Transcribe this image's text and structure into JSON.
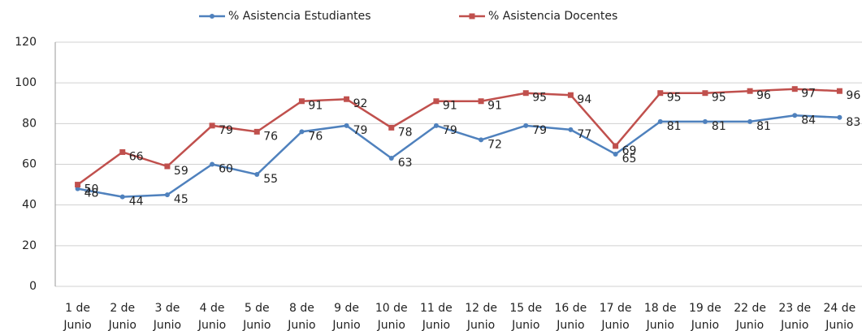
{
  "chart_data": {
    "type": "line",
    "categories": [
      "1 de Junio",
      "2 de Junio",
      "3 de Junio",
      "4 de Junio",
      "5 de Junio",
      "8 de Junio",
      "9 de Junio",
      "10 de Junio",
      "11 de Junio",
      "12 de Junio",
      "15 de Junio",
      "16 de Junio",
      "17 de Junio",
      "18 de Junio",
      "19 de Junio",
      "22 de Junio",
      "23 de Junio",
      "24 de Junio"
    ],
    "series": [
      {
        "name": "% Asistencia Estudiantes",
        "color": "#4f81bd",
        "values": [
          48,
          44,
          45,
          60,
          55,
          76,
          79,
          63,
          79,
          72,
          79,
          77,
          65,
          81,
          81,
          81,
          84,
          83
        ]
      },
      {
        "name": "% Asistencia Docentes",
        "color": "#c0504d",
        "values": [
          50,
          66,
          59,
          79,
          76,
          91,
          92,
          78,
          91,
          91,
          95,
          94,
          69,
          95,
          95,
          96,
          97,
          96
        ]
      }
    ],
    "ylim": [
      0,
      120
    ],
    "yticks": [
      0,
      20,
      40,
      60,
      80,
      100,
      120
    ],
    "grid": true,
    "legend": "top"
  }
}
